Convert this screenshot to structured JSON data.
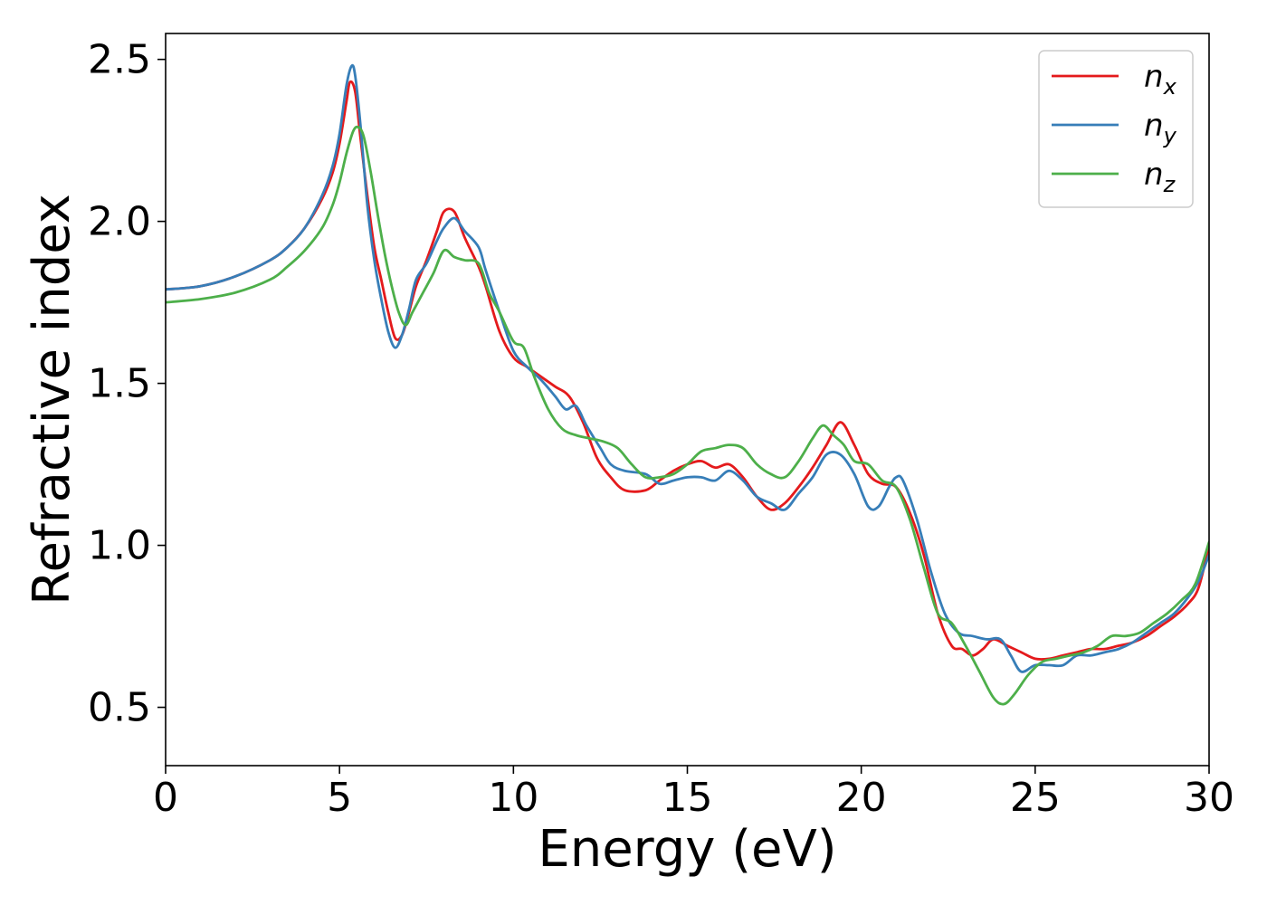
{
  "chart_data": {
    "type": "line",
    "title": "",
    "xlabel": "Energy (eV)",
    "ylabel": "Refractive index",
    "xlim": [
      0,
      30
    ],
    "ylim": [
      0.32,
      2.58
    ],
    "xticks": [
      0,
      5,
      10,
      15,
      20,
      25,
      30
    ],
    "xtick_labels": [
      "0",
      "5",
      "10",
      "15",
      "20",
      "25",
      "30"
    ],
    "yticks": [
      0.5,
      1.0,
      1.5,
      2.0,
      2.5
    ],
    "ytick_labels": [
      "0.5",
      "1.0",
      "1.5",
      "2.0",
      "2.5"
    ],
    "grid": false,
    "legend_position": "top-right",
    "series": [
      {
        "name": "n",
        "sub": "x",
        "color": "#e41a1c",
        "x": [
          0,
          1,
          2,
          3,
          3.5,
          4,
          4.5,
          4.8,
          5.0,
          5.2,
          5.3,
          5.45,
          5.6,
          5.8,
          6.0,
          6.2,
          6.4,
          6.6,
          6.8,
          7.0,
          7.2,
          7.5,
          7.8,
          8.0,
          8.3,
          8.6,
          9.0,
          9.2,
          9.6,
          10.0,
          10.4,
          10.8,
          11.2,
          11.6,
          12.0,
          12.4,
          12.8,
          13.2,
          13.8,
          14.2,
          14.6,
          15.0,
          15.4,
          15.8,
          16.2,
          16.6,
          17.0,
          17.4,
          17.8,
          18.2,
          18.6,
          19.0,
          19.4,
          19.8,
          20.2,
          20.6,
          21.0,
          21.4,
          21.8,
          22.2,
          22.6,
          22.9,
          23.2,
          23.5,
          23.8,
          24.2,
          24.6,
          25.0,
          25.4,
          25.8,
          26.2,
          26.6,
          27.0,
          27.4,
          27.8,
          28.2,
          28.6,
          29.0,
          29.4,
          29.7,
          30.0
        ],
        "y": [
          1.79,
          1.8,
          1.83,
          1.88,
          1.92,
          1.98,
          2.07,
          2.15,
          2.24,
          2.37,
          2.43,
          2.4,
          2.26,
          2.08,
          1.92,
          1.82,
          1.72,
          1.64,
          1.65,
          1.72,
          1.8,
          1.88,
          1.97,
          2.03,
          2.03,
          1.95,
          1.86,
          1.8,
          1.66,
          1.58,
          1.55,
          1.52,
          1.49,
          1.46,
          1.38,
          1.27,
          1.21,
          1.17,
          1.17,
          1.2,
          1.23,
          1.25,
          1.26,
          1.24,
          1.25,
          1.21,
          1.15,
          1.11,
          1.13,
          1.18,
          1.24,
          1.31,
          1.38,
          1.31,
          1.22,
          1.19,
          1.18,
          1.1,
          0.97,
          0.79,
          0.69,
          0.68,
          0.66,
          0.68,
          0.71,
          0.69,
          0.67,
          0.65,
          0.65,
          0.66,
          0.67,
          0.68,
          0.68,
          0.69,
          0.7,
          0.72,
          0.75,
          0.78,
          0.82,
          0.87,
          1.0
        ]
      },
      {
        "name": "n",
        "sub": "y",
        "color": "#377eb8",
        "x": [
          0,
          1,
          2,
          3,
          3.5,
          4,
          4.5,
          4.8,
          5.0,
          5.2,
          5.35,
          5.45,
          5.6,
          5.8,
          6.0,
          6.2,
          6.4,
          6.6,
          6.8,
          7.0,
          7.2,
          7.5,
          7.8,
          8.0,
          8.3,
          8.6,
          9.0,
          9.2,
          9.6,
          10.0,
          10.4,
          10.8,
          11.2,
          11.5,
          11.8,
          12.1,
          12.5,
          12.8,
          13.2,
          13.8,
          14.2,
          14.6,
          15.0,
          15.4,
          15.8,
          16.2,
          16.6,
          17.0,
          17.4,
          17.8,
          18.2,
          18.6,
          19.0,
          19.4,
          19.8,
          20.2,
          20.5,
          20.8,
          21.0,
          21.2,
          21.6,
          22.0,
          22.4,
          22.8,
          23.2,
          23.6,
          24.0,
          24.3,
          24.6,
          25.0,
          25.4,
          25.8,
          26.2,
          26.6,
          27.0,
          27.4,
          27.8,
          28.2,
          28.6,
          29.0,
          29.4,
          29.7,
          30.0
        ],
        "y": [
          1.79,
          1.8,
          1.83,
          1.88,
          1.92,
          1.98,
          2.08,
          2.17,
          2.27,
          2.42,
          2.48,
          2.45,
          2.3,
          2.05,
          1.88,
          1.76,
          1.66,
          1.61,
          1.65,
          1.73,
          1.82,
          1.87,
          1.94,
          1.98,
          2.01,
          1.97,
          1.92,
          1.85,
          1.72,
          1.6,
          1.55,
          1.51,
          1.46,
          1.42,
          1.43,
          1.37,
          1.3,
          1.25,
          1.23,
          1.22,
          1.19,
          1.2,
          1.21,
          1.21,
          1.2,
          1.23,
          1.2,
          1.15,
          1.13,
          1.11,
          1.16,
          1.21,
          1.28,
          1.28,
          1.22,
          1.12,
          1.12,
          1.18,
          1.21,
          1.2,
          1.08,
          0.92,
          0.79,
          0.73,
          0.72,
          0.71,
          0.71,
          0.66,
          0.61,
          0.63,
          0.63,
          0.63,
          0.66,
          0.66,
          0.67,
          0.68,
          0.7,
          0.73,
          0.76,
          0.79,
          0.84,
          0.89,
          0.97
        ]
      },
      {
        "name": "n",
        "sub": "z",
        "color": "#4daf4a",
        "x": [
          0,
          1,
          2,
          3,
          3.5,
          4,
          4.5,
          4.8,
          5.0,
          5.2,
          5.4,
          5.55,
          5.7,
          5.9,
          6.1,
          6.3,
          6.5,
          6.7,
          6.9,
          7.1,
          7.4,
          7.7,
          8.0,
          8.3,
          8.6,
          9.0,
          9.3,
          9.6,
          10.0,
          10.3,
          10.6,
          11.0,
          11.4,
          11.8,
          12.2,
          12.6,
          13.0,
          13.4,
          13.8,
          14.2,
          14.6,
          15.0,
          15.4,
          15.8,
          16.2,
          16.6,
          17.0,
          17.4,
          17.8,
          18.2,
          18.6,
          18.9,
          19.2,
          19.5,
          19.8,
          20.2,
          20.6,
          21.0,
          21.4,
          21.8,
          22.2,
          22.6,
          23.0,
          23.4,
          23.8,
          24.1,
          24.4,
          24.8,
          25.2,
          25.6,
          26.0,
          26.4,
          26.8,
          27.2,
          27.6,
          28.0,
          28.4,
          28.8,
          29.2,
          29.6,
          30.0
        ],
        "y": [
          1.75,
          1.76,
          1.78,
          1.82,
          1.86,
          1.91,
          1.98,
          2.05,
          2.12,
          2.21,
          2.28,
          2.29,
          2.26,
          2.15,
          2.02,
          1.9,
          1.8,
          1.72,
          1.68,
          1.72,
          1.78,
          1.84,
          1.91,
          1.89,
          1.88,
          1.87,
          1.78,
          1.72,
          1.63,
          1.61,
          1.52,
          1.42,
          1.36,
          1.34,
          1.33,
          1.32,
          1.3,
          1.25,
          1.21,
          1.21,
          1.22,
          1.25,
          1.29,
          1.3,
          1.31,
          1.3,
          1.25,
          1.22,
          1.21,
          1.26,
          1.33,
          1.37,
          1.34,
          1.31,
          1.26,
          1.25,
          1.2,
          1.18,
          1.08,
          0.93,
          0.79,
          0.76,
          0.69,
          0.61,
          0.53,
          0.51,
          0.54,
          0.6,
          0.64,
          0.65,
          0.66,
          0.67,
          0.69,
          0.72,
          0.72,
          0.73,
          0.76,
          0.79,
          0.83,
          0.88,
          1.01
        ]
      }
    ]
  }
}
